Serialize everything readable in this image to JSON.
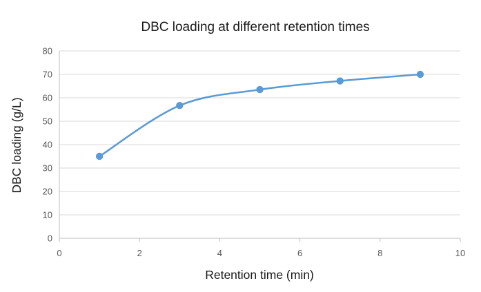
{
  "chart_data": {
    "type": "line",
    "title": "DBC loading at different retention times",
    "xlabel": "Retention time (min)",
    "ylabel": "DBC loading (g/L)",
    "xlim": [
      0,
      10
    ],
    "ylim": [
      0,
      80
    ],
    "x_ticks": [
      0,
      2,
      4,
      6,
      8,
      10
    ],
    "y_ticks": [
      0,
      10,
      20,
      30,
      40,
      50,
      60,
      70,
      80
    ],
    "grid": "horizontal",
    "smooth": true,
    "series": [
      {
        "color": "#5b9bd5",
        "points": [
          {
            "x": 1,
            "y": 35
          },
          {
            "x": 3,
            "y": 56.7
          },
          {
            "x": 5,
            "y": 63.5
          },
          {
            "x": 7,
            "y": 67.2
          },
          {
            "x": 9,
            "y": 70
          }
        ]
      }
    ]
  }
}
